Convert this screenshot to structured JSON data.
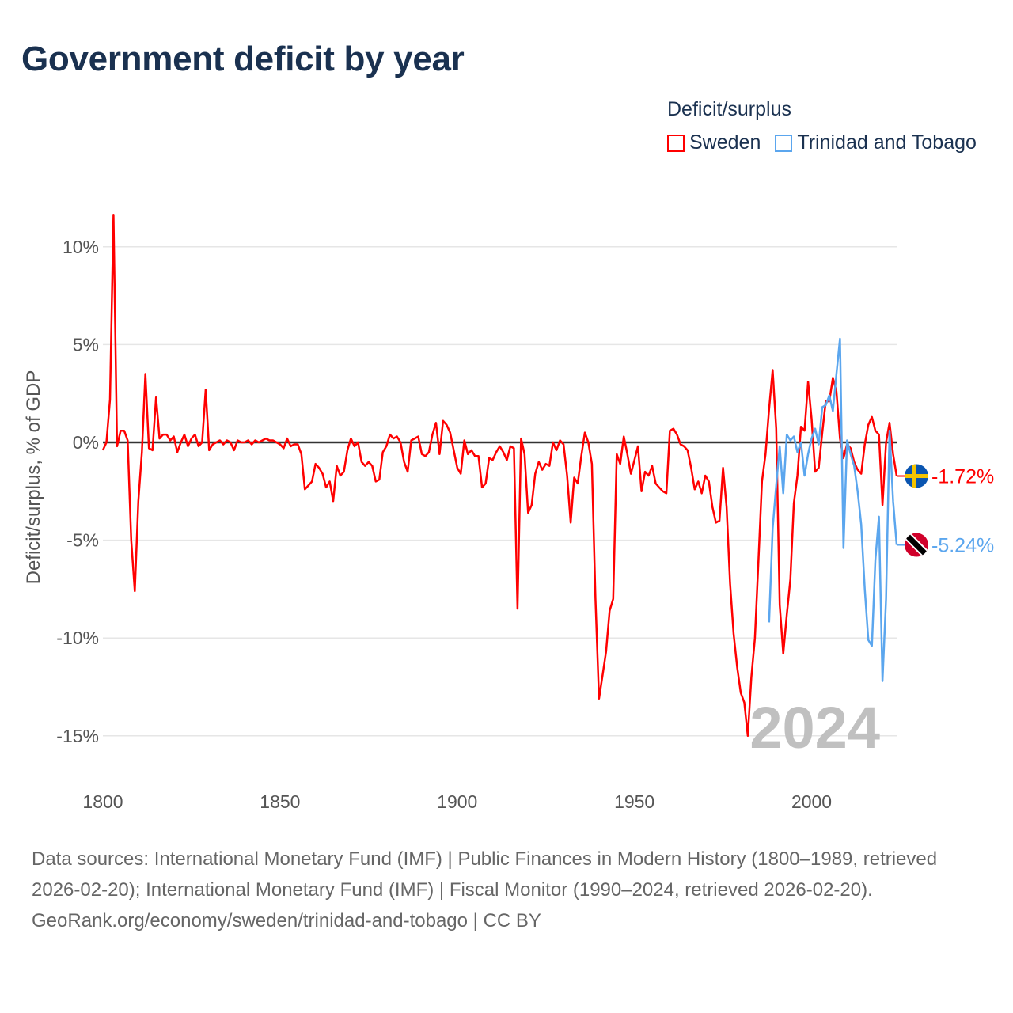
{
  "title": "Government deficit by year",
  "legend": {
    "title": "Deficit/surplus",
    "items": [
      {
        "name": "Sweden",
        "color": "#ff0000"
      },
      {
        "name": "Trinidad and Tobago",
        "color": "#5ba6ee"
      }
    ]
  },
  "watermark_year": "2024",
  "footer": {
    "sources": "Data sources: International Monetary Fund (IMF) | Public Finances in Modern History (1800–1989, retrieved 2026-02-20); International Monetary Fund (IMF) | Fiscal Monitor (1990–2024, retrieved 2026-02-20).",
    "credit": "GeoRank.org/economy/sweden/trinidad-and-tobago | CC BY"
  },
  "chart_data": {
    "type": "line",
    "title": "Government deficit by year",
    "xlabel": "",
    "ylabel": "Deficit/surplus, % of GDP",
    "xlim": [
      1800,
      2024
    ],
    "ylim": [
      -16.5,
      12
    ],
    "grid": true,
    "legend_position": "top-right",
    "x_ticks": [
      1800,
      1850,
      1900,
      1950,
      2000
    ],
    "x_tick_labels": [
      "1800",
      "1850",
      "1900",
      "1950",
      "2000"
    ],
    "y_ticks": [
      10,
      5,
      0,
      -5,
      -10,
      -15
    ],
    "y_tick_labels": [
      "10%",
      "5%",
      "0%",
      "-5%",
      "-10%",
      "-15%"
    ],
    "series": [
      {
        "name": "Sweden",
        "color": "#ff0000",
        "start_year": 1800,
        "end_label": "-1.72%",
        "flag": "sweden-flag",
        "values": [
          -0.4,
          0,
          2.2,
          11.6,
          -0.2,
          0.6,
          0.6,
          0.1,
          -5,
          -7.6,
          -3,
          -0.5,
          3.5,
          -0.3,
          -0.4,
          2.3,
          0.2,
          0.4,
          0.4,
          0.1,
          0.3,
          -0.5,
          0,
          0.4,
          -0.2,
          0.2,
          0.4,
          -0.2,
          0,
          2.7,
          -0.4,
          -0.1,
          0,
          0.1,
          -0.1,
          0.1,
          0,
          -0.4,
          0.1,
          0,
          0,
          0.1,
          -0.1,
          0.1,
          0,
          0.1,
          0.2,
          0.1,
          0.1,
          0,
          -0.1,
          -0.3,
          0.2,
          -0.2,
          -0.1,
          -0.1,
          -0.6,
          -2.4,
          -2.2,
          -2,
          -1.1,
          -1.3,
          -1.6,
          -2.3,
          -2,
          -3,
          -1.2,
          -1.7,
          -1.5,
          -0.4,
          0.2,
          -0.2,
          0,
          -1,
          -1.2,
          -1,
          -1.2,
          -2,
          -1.9,
          -0.5,
          -0.2,
          0.4,
          0.2,
          0.3,
          0,
          -1,
          -1.5,
          0.1,
          0.2,
          0.3,
          -0.6,
          -0.7,
          -0.5,
          0.4,
          1,
          -0.6,
          1.1,
          0.9,
          0.5,
          -0.4,
          -1.3,
          -1.6,
          0.1,
          -0.6,
          -0.4,
          -0.7,
          -0.7,
          -2.3,
          -2.1,
          -0.8,
          -0.9,
          -0.5,
          -0.2,
          -0.5,
          -0.9,
          -0.2,
          -0.3,
          -8.5,
          0.2,
          -0.6,
          -3.6,
          -3.2,
          -1.6,
          -1,
          -1.4,
          -1.1,
          -1.2,
          0,
          -0.4,
          0.1,
          -0.1,
          -1.7,
          -4.1,
          -1.8,
          -2.1,
          -0.7,
          0.5,
          0,
          -1.1,
          -8,
          -13.1,
          -11.9,
          -10.7,
          -8.6,
          -8,
          -0.6,
          -1.1,
          0.3,
          -0.6,
          -1.6,
          -0.9,
          -0.2,
          -2.5,
          -1.5,
          -1.7,
          -1.2,
          -2.1,
          -2.3,
          -2.5,
          -2.6,
          0.6,
          0.7,
          0.4,
          -0.1,
          -0.2,
          -0.4,
          -1.3,
          -2.4,
          -2,
          -2.6,
          -1.7,
          -2,
          -3.3,
          -4.1,
          -4,
          -1.3,
          -3.3,
          -7.2,
          -9.8,
          -11.5,
          -12.8,
          -13.3,
          -15,
          -12,
          -10,
          -6,
          -2,
          -0.6,
          1.7,
          3.7,
          0.7,
          -8.3,
          -10.8,
          -8.8,
          -7,
          -3.1,
          -1.7,
          0.8,
          0.6,
          3.1,
          1.2,
          -1.5,
          -1.3,
          0.5,
          2.1,
          2.1,
          3.3,
          2.6,
          0.2,
          -0.8,
          -0.1,
          -0.3,
          -1,
          -1.4,
          -1.6,
          -0.1,
          0.9,
          1.3,
          0.6,
          0.4,
          -3.2,
          0,
          1,
          -0.6,
          -1.72
        ]
      },
      {
        "name": "Trinidad and Tobago",
        "color": "#5ba6ee",
        "start_year": 1988,
        "end_label": "-5.24%",
        "flag": "trinidad-and-tobago-flag",
        "values": [
          -9.2,
          -4.4,
          -2.2,
          -0.2,
          -2.6,
          0.4,
          0.1,
          0.3,
          -0.5,
          0,
          -1.7,
          -0.6,
          0.2,
          0.7,
          -0.1,
          1.8,
          1.9,
          2.4,
          1.6,
          3.5,
          5.3,
          -5.4,
          0.1,
          -0.6,
          -1.2,
          -2.5,
          -4.2,
          -7.5,
          -10.1,
          -10.4,
          -6,
          -3.8,
          -12.2,
          -8,
          0.6,
          -3,
          -5.24
        ]
      }
    ]
  }
}
